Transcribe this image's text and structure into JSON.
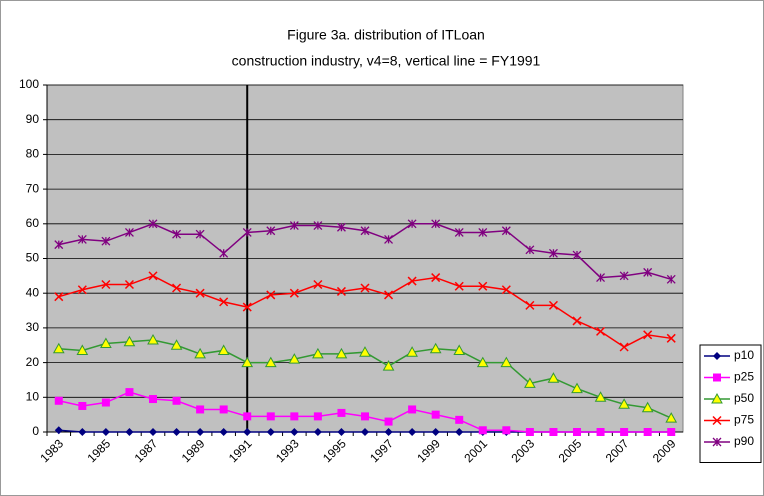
{
  "chart_data": {
    "type": "line",
    "title": "Figure 3a. distribution of ITLoan",
    "subtitle": "construction industry, v4=8, vertical line = FY1991",
    "categories": [
      1983,
      null,
      1985,
      null,
      1987,
      null,
      1989,
      null,
      1991,
      null,
      1993,
      null,
      1995,
      null,
      1997,
      null,
      1999,
      null,
      2001,
      null,
      2003,
      null,
      2005,
      null,
      2007,
      null,
      2009
    ],
    "vline": 1991,
    "ylim": [
      0,
      100
    ],
    "yticks": [
      0,
      10,
      20,
      30,
      40,
      50,
      60,
      70,
      80,
      90,
      100
    ],
    "grid": true,
    "background": "#c0c0c0",
    "legend": "right",
    "series": [
      {
        "name": "p10",
        "color": "#000080",
        "marker": "diamond",
        "values": [
          0.5,
          0,
          0,
          0,
          0,
          0,
          0,
          0,
          0,
          0,
          0,
          0,
          0,
          0,
          0,
          0,
          0,
          0,
          0,
          0,
          0,
          0,
          0,
          0,
          0,
          0,
          0
        ]
      },
      {
        "name": "p25",
        "color": "#ff00ff",
        "marker": "square",
        "values": [
          9,
          7.5,
          8.5,
          11.5,
          9.5,
          9,
          6.5,
          6.5,
          4.5,
          4.5,
          4.5,
          4.5,
          5.5,
          4.5,
          3,
          6.5,
          5,
          3.5,
          0.5,
          0.5,
          0,
          0,
          0,
          0,
          0,
          0,
          0
        ]
      },
      {
        "name": "p50",
        "color": "#339933",
        "marker": "triangle",
        "values": [
          24,
          23.5,
          25.5,
          26,
          26.5,
          25,
          22.5,
          23.5,
          20,
          20,
          21,
          22.5,
          22.5,
          23,
          19,
          23,
          24,
          23.5,
          20,
          20,
          14,
          15.5,
          12.5,
          10,
          8,
          7,
          4
        ]
      },
      {
        "name": "p75",
        "color": "#ff0000",
        "marker": "x",
        "values": [
          39,
          41,
          42.5,
          42.5,
          45,
          41.5,
          40,
          37.5,
          36,
          39.5,
          40,
          42.5,
          40.5,
          41.5,
          39.5,
          43.5,
          44.5,
          42,
          42,
          41,
          36.5,
          36.5,
          32,
          29,
          24.5,
          28,
          27
        ]
      },
      {
        "name": "p90",
        "color": "#800080",
        "marker": "star",
        "values": [
          54,
          55.5,
          55,
          57.5,
          60,
          57,
          57,
          51.5,
          57.5,
          58,
          59.5,
          59.5,
          59,
          58,
          55.5,
          60,
          60,
          57.5,
          57.5,
          58,
          52.5,
          51.5,
          51,
          44.5,
          45,
          46,
          44
        ]
      }
    ]
  }
}
